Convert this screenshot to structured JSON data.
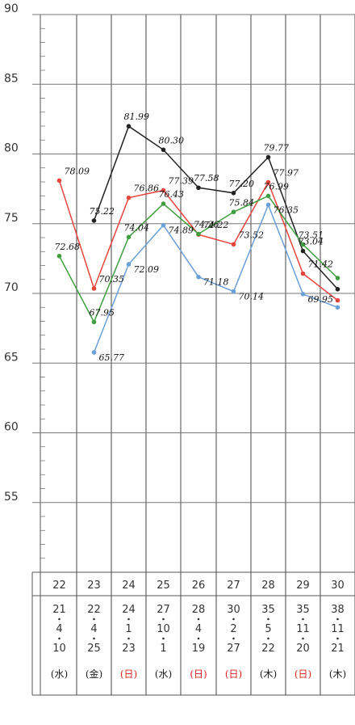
{
  "chart_data": {
    "type": "line",
    "ylim": [
      50,
      90
    ],
    "y_ticks": [
      55,
      60,
      65,
      70,
      75,
      80,
      85,
      90
    ],
    "grid": true,
    "x": [
      "22",
      "23",
      "24",
      "25",
      "26",
      "27",
      "28",
      "29",
      "30"
    ],
    "dates": [
      [
        "21",
        "4",
        "10"
      ],
      [
        "22",
        "4",
        "25"
      ],
      [
        "24",
        "1",
        "23"
      ],
      [
        "27",
        "10",
        "1"
      ],
      [
        "28",
        "4",
        "19"
      ],
      [
        "30",
        "2",
        "27"
      ],
      [
        "35",
        "5",
        "22"
      ],
      [
        "35",
        "11",
        "20"
      ],
      [
        "38",
        "11",
        "21"
      ]
    ],
    "weekdays": [
      {
        "text": "(水)",
        "red": false
      },
      {
        "text": "(金)",
        "red": false
      },
      {
        "text": "(日)",
        "red": true
      },
      {
        "text": "(水)",
        "red": false
      },
      {
        "text": "(日)",
        "red": true
      },
      {
        "text": "(日)",
        "red": true
      },
      {
        "text": "(木)",
        "red": false
      },
      {
        "text": "(日)",
        "red": true
      },
      {
        "text": "(木)",
        "red": false
      }
    ],
    "series": [
      {
        "color": "#222222",
        "values": [
          null,
          75.22,
          81.99,
          80.3,
          77.58,
          77.2,
          79.77,
          73.04,
          70.3
        ],
        "labels": [
          "",
          "75.22",
          "81.99",
          "80.30",
          "77.58",
          "77.20",
          "79.77",
          "73.04",
          ""
        ]
      },
      {
        "color": "#e8453c",
        "values": [
          78.09,
          70.35,
          76.86,
          77.39,
          74.22,
          73.52,
          77.97,
          71.42,
          69.5
        ],
        "labels": [
          "78.09",
          "70.35",
          "76.86",
          "77.39",
          "74.22",
          "73.52",
          "77.97",
          "71.42",
          ""
        ]
      },
      {
        "color": "#3f9e3f",
        "values": [
          72.68,
          67.95,
          74.04,
          76.43,
          74.26,
          75.84,
          76.99,
          73.51,
          71.1
        ],
        "labels": [
          "72.68",
          "67.95",
          "74.04",
          "76.43",
          "74.26",
          "75.84",
          "76.99",
          "73.51",
          ""
        ]
      },
      {
        "color": "#6a9fd8",
        "values": [
          null,
          65.77,
          72.09,
          74.89,
          71.18,
          70.14,
          76.35,
          69.95,
          69.0
        ],
        "labels": [
          "",
          "65.77",
          "72.09",
          "74.89",
          "71.18",
          "70.14",
          "76.35",
          "69.95",
          ""
        ]
      }
    ]
  }
}
